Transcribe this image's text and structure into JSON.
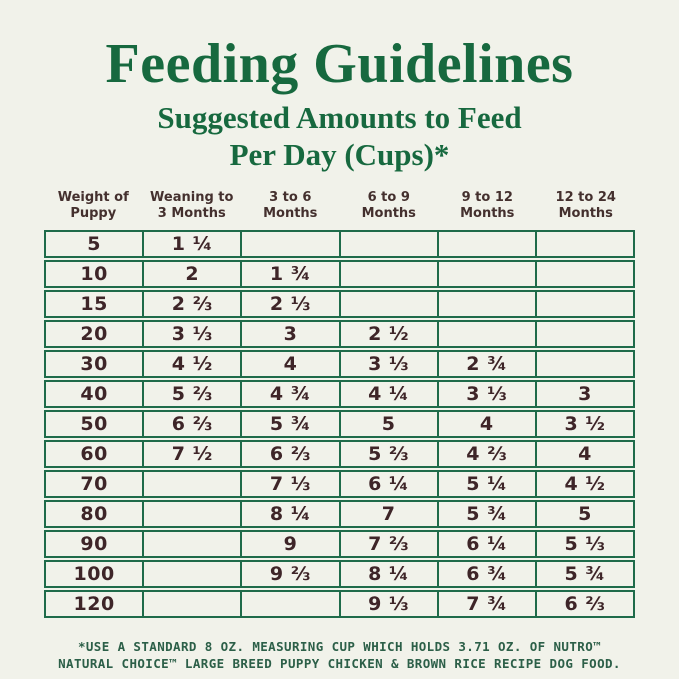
{
  "title": "Feeding Guidelines",
  "subtitle": {
    "line1": "Suggested Amounts to Feed",
    "line2": "Per Day (Cups)*"
  },
  "table": {
    "headers": [
      [
        "Weight of",
        "Puppy"
      ],
      [
        "Weaning to",
        "3 Months"
      ],
      [
        "3 to 6",
        "Months"
      ],
      [
        "6 to 9",
        "Months"
      ],
      [
        "9 to 12",
        "Months"
      ],
      [
        "12 to 24",
        "Months"
      ]
    ],
    "rows": [
      [
        "5",
        "1 ¼",
        "",
        "",
        "",
        ""
      ],
      [
        "10",
        "2",
        "1 ¾",
        "",
        "",
        ""
      ],
      [
        "15",
        "2 ⅔",
        "2 ⅓",
        "",
        "",
        ""
      ],
      [
        "20",
        "3 ⅓",
        "3",
        "2 ½",
        "",
        ""
      ],
      [
        "30",
        "4 ½",
        "4",
        "3 ⅓",
        "2 ¾",
        ""
      ],
      [
        "40",
        "5 ⅔",
        "4 ¾",
        "4 ¼",
        "3 ⅓",
        "3"
      ],
      [
        "50",
        "6 ⅔",
        "5 ¾",
        "5",
        "4",
        "3 ½"
      ],
      [
        "60",
        "7 ½",
        "6 ⅔",
        "5 ⅔",
        "4 ⅔",
        "4"
      ],
      [
        "70",
        "",
        "7 ⅓",
        "6 ¼",
        "5 ¼",
        "4 ½"
      ],
      [
        "80",
        "",
        "8 ¼",
        "7",
        "5 ¾",
        "5"
      ],
      [
        "90",
        "",
        "9",
        "7 ⅔",
        "6 ¼",
        "5 ⅓"
      ],
      [
        "100",
        "",
        "9 ⅔",
        "8 ¼",
        "6 ¾",
        "5 ¾"
      ],
      [
        "120",
        "",
        "",
        "9 ⅓",
        "7 ¾",
        "6 ⅔"
      ]
    ]
  },
  "footnote": {
    "line1": "*USE A STANDARD 8 OZ. MEASURING CUP WHICH HOLDS 3.71 OZ. OF NUTRO™",
    "line2": "NATURAL CHOICE™ LARGE BREED PUPPY CHICKEN & BROWN RICE RECIPE DOG FOOD."
  },
  "colors": {
    "background": "#f1f2ea",
    "title_green": "#17693f",
    "table_border_green": "#1f6b4a",
    "cell_text_brown": "#3e2528",
    "header_text_brown": "#44302e",
    "footnote_green": "#2c5f48"
  },
  "chart_data": {
    "type": "table",
    "title": "Feeding Guidelines",
    "subtitle": "Suggested Amounts to Feed Per Day (Cups)*",
    "units": "cups per day",
    "columns": [
      "Weight of Puppy",
      "Weaning to 3 Months",
      "3 to 6 Months",
      "6 to 9 Months",
      "9 to 12 Months",
      "12 to 24 Months"
    ],
    "rows": [
      [
        5,
        "1 1/4",
        null,
        null,
        null,
        null
      ],
      [
        10,
        "2",
        "1 3/4",
        null,
        null,
        null
      ],
      [
        15,
        "2 2/3",
        "2 1/3",
        null,
        null,
        null
      ],
      [
        20,
        "3 1/3",
        "3",
        "2 1/2",
        null,
        null
      ],
      [
        30,
        "4 1/2",
        "4",
        "3 1/3",
        "2 3/4",
        null
      ],
      [
        40,
        "5 2/3",
        "4 3/4",
        "4 1/4",
        "3 1/3",
        "3"
      ],
      [
        50,
        "6 2/3",
        "5 3/4",
        "5",
        "4",
        "3 1/2"
      ],
      [
        60,
        "7 1/2",
        "6 2/3",
        "5 2/3",
        "4 2/3",
        "4"
      ],
      [
        70,
        null,
        "7 1/3",
        "6 1/4",
        "5 1/4",
        "4 1/2"
      ],
      [
        80,
        null,
        "8 1/4",
        "7",
        "5 3/4",
        "5"
      ],
      [
        90,
        null,
        "9",
        "7 2/3",
        "6 1/4",
        "5 1/3"
      ],
      [
        100,
        null,
        "9 2/3",
        "8 1/4",
        "6 3/4",
        "5 3/4"
      ],
      [
        120,
        null,
        null,
        "9 1/3",
        "7 3/4",
        "6 2/3"
      ]
    ],
    "footnote": "*USE A STANDARD 8 OZ. MEASURING CUP WHICH HOLDS 3.71 OZ. OF NUTRO™ NATURAL CHOICE™ LARGE BREED PUPPY CHICKEN & BROWN RICE RECIPE DOG FOOD."
  }
}
